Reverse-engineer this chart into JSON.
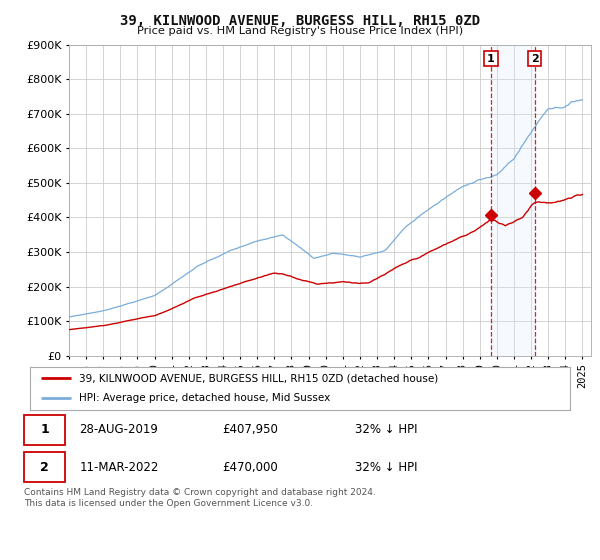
{
  "title": "39, KILNWOOD AVENUE, BURGESS HILL, RH15 0ZD",
  "subtitle": "Price paid vs. HM Land Registry's House Price Index (HPI)",
  "ylim": [
    0,
    900000
  ],
  "yticks": [
    0,
    100000,
    200000,
    300000,
    400000,
    500000,
    600000,
    700000,
    800000,
    900000
  ],
  "xlim_start": 1995.0,
  "xlim_end": 2025.5,
  "red_line_label": "39, KILNWOOD AVENUE, BURGESS HILL, RH15 0ZD (detached house)",
  "blue_line_label": "HPI: Average price, detached house, Mid Sussex",
  "sale1_date": "28-AUG-2019",
  "sale1_price": "£407,950",
  "sale1_hpi": "32% ↓ HPI",
  "sale1_x": 2019.65,
  "sale1_y": 407950,
  "sale2_date": "11-MAR-2022",
  "sale2_price": "£470,000",
  "sale2_hpi": "32% ↓ HPI",
  "sale2_x": 2022.2,
  "sale2_y": 470000,
  "footer": "Contains HM Land Registry data © Crown copyright and database right 2024.\nThis data is licensed under the Open Government Licence v3.0.",
  "red_color": "#cc0000",
  "blue_color": "#7aaddb",
  "vline_color": "#cc0000",
  "background_color": "#ffffff",
  "grid_color": "#cccccc",
  "shade_color": "#ddeeff"
}
